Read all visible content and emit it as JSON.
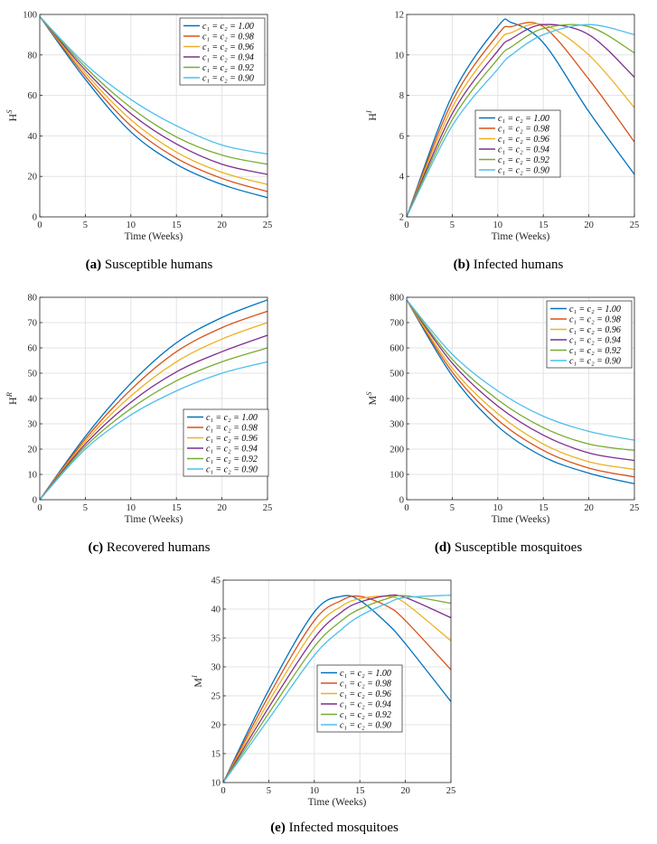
{
  "colors": [
    "#0072BD",
    "#D95319",
    "#EDB120",
    "#7E2F8E",
    "#77AC30",
    "#4DBEEE"
  ],
  "legend_entries": [
    "c₁ = c₂ = 1.00",
    "c₁ = c₂ = 0.98",
    "c₁ = c₂ = 0.96",
    "c₁ = c₂ = 0.94",
    "c₁ = c₂ = 0.92",
    "c₁ = c₂ = 0.90"
  ],
  "chart_data": [
    {
      "id": "a",
      "type": "line",
      "caption_tag": "(a)",
      "caption_text": "Susceptible humans",
      "xlabel": "Time (Weeks)",
      "ylabel_main": "H",
      "ylabel_sup": "S",
      "xlim": [
        0,
        25
      ],
      "ylim": [
        0,
        100
      ],
      "xticks": [
        0,
        5,
        10,
        15,
        20,
        25
      ],
      "yticks": [
        0,
        20,
        40,
        60,
        80,
        100
      ],
      "grid": true,
      "legend_position": "top-right",
      "x": [
        0,
        5,
        10,
        15,
        20,
        25
      ],
      "series": [
        {
          "name": "c₁ = c₂ = 1.00",
          "values": [
            99,
            68,
            42,
            26,
            16,
            9.5
          ]
        },
        {
          "name": "c₁ = c₂ = 0.98",
          "values": [
            99,
            69.5,
            45,
            29,
            19,
            12.5
          ]
        },
        {
          "name": "c₁ = c₂ = 0.96",
          "values": [
            99,
            71,
            48,
            32,
            22,
            16
          ]
        },
        {
          "name": "c₁ = c₂ = 0.94",
          "values": [
            99,
            72.5,
            51,
            36,
            26,
            21
          ]
        },
        {
          "name": "c₁ = c₂ = 0.92",
          "values": [
            99,
            74,
            54,
            39.5,
            30.5,
            26
          ]
        },
        {
          "name": "c₁ = c₂ = 0.90",
          "values": [
            99,
            75.5,
            58,
            45,
            35.5,
            31
          ]
        }
      ]
    },
    {
      "id": "b",
      "type": "line",
      "caption_tag": "(b)",
      "caption_text": "Infected humans",
      "xlabel": "Time (Weeks)",
      "ylabel_main": "H",
      "ylabel_sup": "I",
      "xlim": [
        0,
        25
      ],
      "ylim": [
        2,
        12
      ],
      "xticks": [
        0,
        5,
        10,
        15,
        20,
        25
      ],
      "yticks": [
        2,
        4,
        6,
        8,
        10,
        12
      ],
      "grid": true,
      "legend_position": "center-left",
      "x": [
        0,
        5,
        10,
        11.5,
        15,
        20,
        25
      ],
      "series": [
        {
          "name": "c₁ = c₂ = 1.00",
          "values": [
            2,
            8,
            11.4,
            11.6,
            10.6,
            7.2,
            4.1
          ]
        },
        {
          "name": "c₁ = c₂ = 0.98",
          "values": [
            2,
            7.7,
            11,
            11.4,
            11.4,
            8.8,
            5.7
          ]
        },
        {
          "name": "c₁ = c₂ = 0.96",
          "values": [
            2,
            7.4,
            10.6,
            11.1,
            11.5,
            10.0,
            7.4
          ]
        },
        {
          "name": "c₁ = c₂ = 0.94",
          "values": [
            2,
            7.1,
            10.2,
            10.8,
            11.5,
            11.0,
            8.9
          ]
        },
        {
          "name": "c₁ = c₂ = 0.92",
          "values": [
            2,
            6.8,
            9.8,
            10.4,
            11.3,
            11.4,
            10.1
          ]
        },
        {
          "name": "c₁ = c₂ = 0.90",
          "values": [
            2,
            6.5,
            9.3,
            10.0,
            11.0,
            11.5,
            11.0
          ]
        }
      ]
    },
    {
      "id": "c",
      "type": "line",
      "caption_tag": "(c)",
      "caption_text": "Recovered humans",
      "xlabel": "Time (Weeks)",
      "ylabel_main": "H",
      "ylabel_sup": "R",
      "xlim": [
        0,
        25
      ],
      "ylim": [
        0,
        80
      ],
      "xticks": [
        0,
        5,
        10,
        15,
        20,
        25
      ],
      "yticks": [
        0,
        10,
        20,
        30,
        40,
        50,
        60,
        70,
        80
      ],
      "grid": true,
      "legend_position": "bottom-right",
      "x": [
        0,
        5,
        10,
        15,
        20,
        25
      ],
      "series": [
        {
          "name": "c₁ = c₂ = 1.00",
          "values": [
            0,
            25,
            46,
            62,
            72,
            79
          ]
        },
        {
          "name": "c₁ = c₂ = 0.98",
          "values": [
            0,
            24,
            43.5,
            58.5,
            68,
            74.5
          ]
        },
        {
          "name": "c₁ = c₂ = 0.96",
          "values": [
            0,
            23,
            41,
            54.5,
            63.5,
            70
          ]
        },
        {
          "name": "c₁ = c₂ = 0.94",
          "values": [
            0,
            22,
            38.5,
            50.5,
            58.5,
            65
          ]
        },
        {
          "name": "c₁ = c₂ = 0.92",
          "values": [
            0,
            21,
            36,
            47,
            54.5,
            60
          ]
        },
        {
          "name": "c₁ = c₂ = 0.90",
          "values": [
            0,
            20,
            33.5,
            43,
            50,
            54.5
          ]
        }
      ]
    },
    {
      "id": "d",
      "type": "line",
      "caption_tag": "(d)",
      "caption_text": "Susceptible mosquitoes",
      "xlabel": "Time (Weeks)",
      "ylabel_main": "M",
      "ylabel_sup": "S",
      "xlim": [
        0,
        25
      ],
      "ylim": [
        0,
        800
      ],
      "xticks": [
        0,
        5,
        10,
        15,
        20,
        25
      ],
      "yticks": [
        0,
        100,
        200,
        300,
        400,
        500,
        600,
        700,
        800
      ],
      "grid": true,
      "legend_position": "top-right",
      "x": [
        0,
        5,
        10,
        15,
        20,
        25
      ],
      "series": [
        {
          "name": "c₁ = c₂ = 1.00",
          "values": [
            790,
            490,
            290,
            170,
            105,
            63
          ]
        },
        {
          "name": "c₁ = c₂ = 0.98",
          "values": [
            790,
            505,
            315,
            195,
            125,
            90
          ]
        },
        {
          "name": "c₁ = c₂ = 0.96",
          "values": [
            790,
            520,
            340,
            220,
            150,
            120
          ]
        },
        {
          "name": "c₁ = c₂ = 0.94",
          "values": [
            790,
            540,
            370,
            255,
            185,
            155
          ]
        },
        {
          "name": "c₁ = c₂ = 0.92",
          "values": [
            790,
            555,
            395,
            285,
            220,
            195
          ]
        },
        {
          "name": "c₁ = c₂ = 0.90",
          "values": [
            790,
            575,
            430,
            330,
            270,
            235
          ]
        }
      ]
    },
    {
      "id": "e",
      "type": "line",
      "caption_tag": "(e)",
      "caption_text": "Infected mosquitoes",
      "xlabel": "Time (Weeks)",
      "ylabel_main": "M",
      "ylabel_sup": "I",
      "xlim": [
        0,
        25
      ],
      "ylim": [
        10,
        45
      ],
      "xticks": [
        0,
        5,
        10,
        15,
        20,
        25
      ],
      "yticks": [
        10,
        15,
        20,
        25,
        30,
        35,
        40,
        45
      ],
      "grid": true,
      "legend_position": "center",
      "x": [
        0,
        5,
        10,
        13,
        15,
        18,
        20,
        25
      ],
      "series": [
        {
          "name": "c₁ = c₂ = 1.00",
          "values": [
            10,
            26,
            39.5,
            42.2,
            41.5,
            37.5,
            34,
            24
          ]
        },
        {
          "name": "c₁ = c₂ = 0.98",
          "values": [
            10,
            25,
            38,
            41.5,
            42.2,
            40.5,
            38,
            29.5
          ]
        },
        {
          "name": "c₁ = c₂ = 0.96",
          "values": [
            10,
            24,
            36.5,
            40.5,
            41.8,
            42.2,
            41,
            34.5
          ]
        },
        {
          "name": "c₁ = c₂ = 0.94",
          "values": [
            10,
            23,
            35,
            39.5,
            41.2,
            42.3,
            42,
            38.5
          ]
        },
        {
          "name": "c₁ = c₂ = 0.92",
          "values": [
            10,
            22,
            33.5,
            38,
            40,
            41.8,
            42.3,
            41
          ]
        },
        {
          "name": "c₁ = c₂ = 0.90",
          "values": [
            10,
            21,
            32,
            36.5,
            38.8,
            41,
            42,
            42.4
          ]
        }
      ]
    }
  ]
}
